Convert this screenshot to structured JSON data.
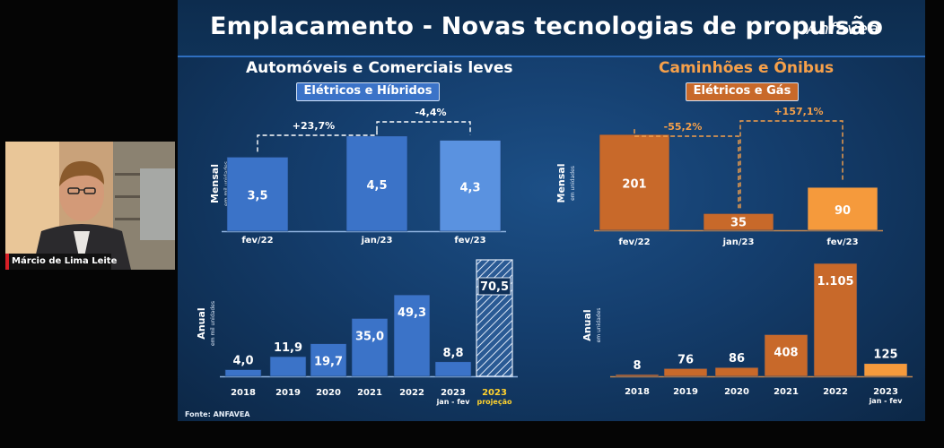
{
  "slide": {
    "title": "Emplacamento - Novas tecnologias de propulsão",
    "logo": "Anfavea",
    "source": "Fonte: ANFAVEA"
  },
  "video": {
    "speaker_name": "Márcio de Lima Leite"
  },
  "sections": [
    {
      "title": "Automóveis e Comerciais leves",
      "badge": "Elétricos e Híbridos"
    },
    {
      "title": "Caminhões e Ônibus",
      "badge": "Elétricos e Gás"
    }
  ],
  "colors": {
    "blue": "#3b73c8",
    "blue_light": "#5a92e0",
    "orange": "#c8692a",
    "orange_light": "#f59a3c",
    "orange_text": "#f6a04a",
    "highlight_yellow": "#ffd22e"
  },
  "chart_data": [
    {
      "type": "bar",
      "group": "Automóveis e Comerciais leves",
      "ylabel": "Mensal",
      "ylabel_sub": "em mil unidades",
      "categories": [
        "fev/22",
        "jan/23",
        "fev/23"
      ],
      "values": [
        3.5,
        4.5,
        4.3
      ],
      "value_labels": [
        "3,5",
        "4,5",
        "4,3"
      ],
      "annotations": [
        {
          "from": 0,
          "to": 1,
          "label": "+23,7%"
        },
        {
          "from": 1,
          "to": 2,
          "label": "-4,4%"
        }
      ]
    },
    {
      "type": "bar",
      "group": "Automóveis e Comerciais leves",
      "ylabel": "Anual",
      "ylabel_sub": "em mil unidades",
      "categories": [
        "2018",
        "2019",
        "2020",
        "2021",
        "2022",
        "2023",
        "2023"
      ],
      "category_sublabels": [
        "",
        "",
        "",
        "",
        "",
        "jan - fev",
        "projeção"
      ],
      "values": [
        4.0,
        11.9,
        19.7,
        35.0,
        49.3,
        8.8,
        70.5
      ],
      "value_labels": [
        "4,0",
        "11,9",
        "19,7",
        "35,0",
        "49,3",
        "8,8",
        "70,5"
      ],
      "projection_index": 6
    },
    {
      "type": "bar",
      "group": "Caminhões e Ônibus",
      "ylabel": "Mensal",
      "ylabel_sub": "em unidades",
      "categories": [
        "fev/22",
        "jan/23",
        "fev/23"
      ],
      "values": [
        201,
        35,
        90
      ],
      "value_labels": [
        "201",
        "35",
        "90"
      ],
      "annotations": [
        {
          "from": 0,
          "to": 1,
          "label": "-55,2%"
        },
        {
          "from": 1,
          "to": 2,
          "label": "+157,1%"
        }
      ]
    },
    {
      "type": "bar",
      "group": "Caminhões e Ônibus",
      "ylabel": "Anual",
      "ylabel_sub": "em unidades",
      "categories": [
        "2018",
        "2019",
        "2020",
        "2021",
        "2022",
        "2023"
      ],
      "category_sublabels": [
        "",
        "",
        "",
        "",
        "",
        "jan - fev"
      ],
      "values": [
        8,
        76,
        86,
        408,
        1105,
        125
      ],
      "value_labels": [
        "8",
        "76",
        "86",
        "408",
        "1.105",
        "125"
      ]
    }
  ]
}
